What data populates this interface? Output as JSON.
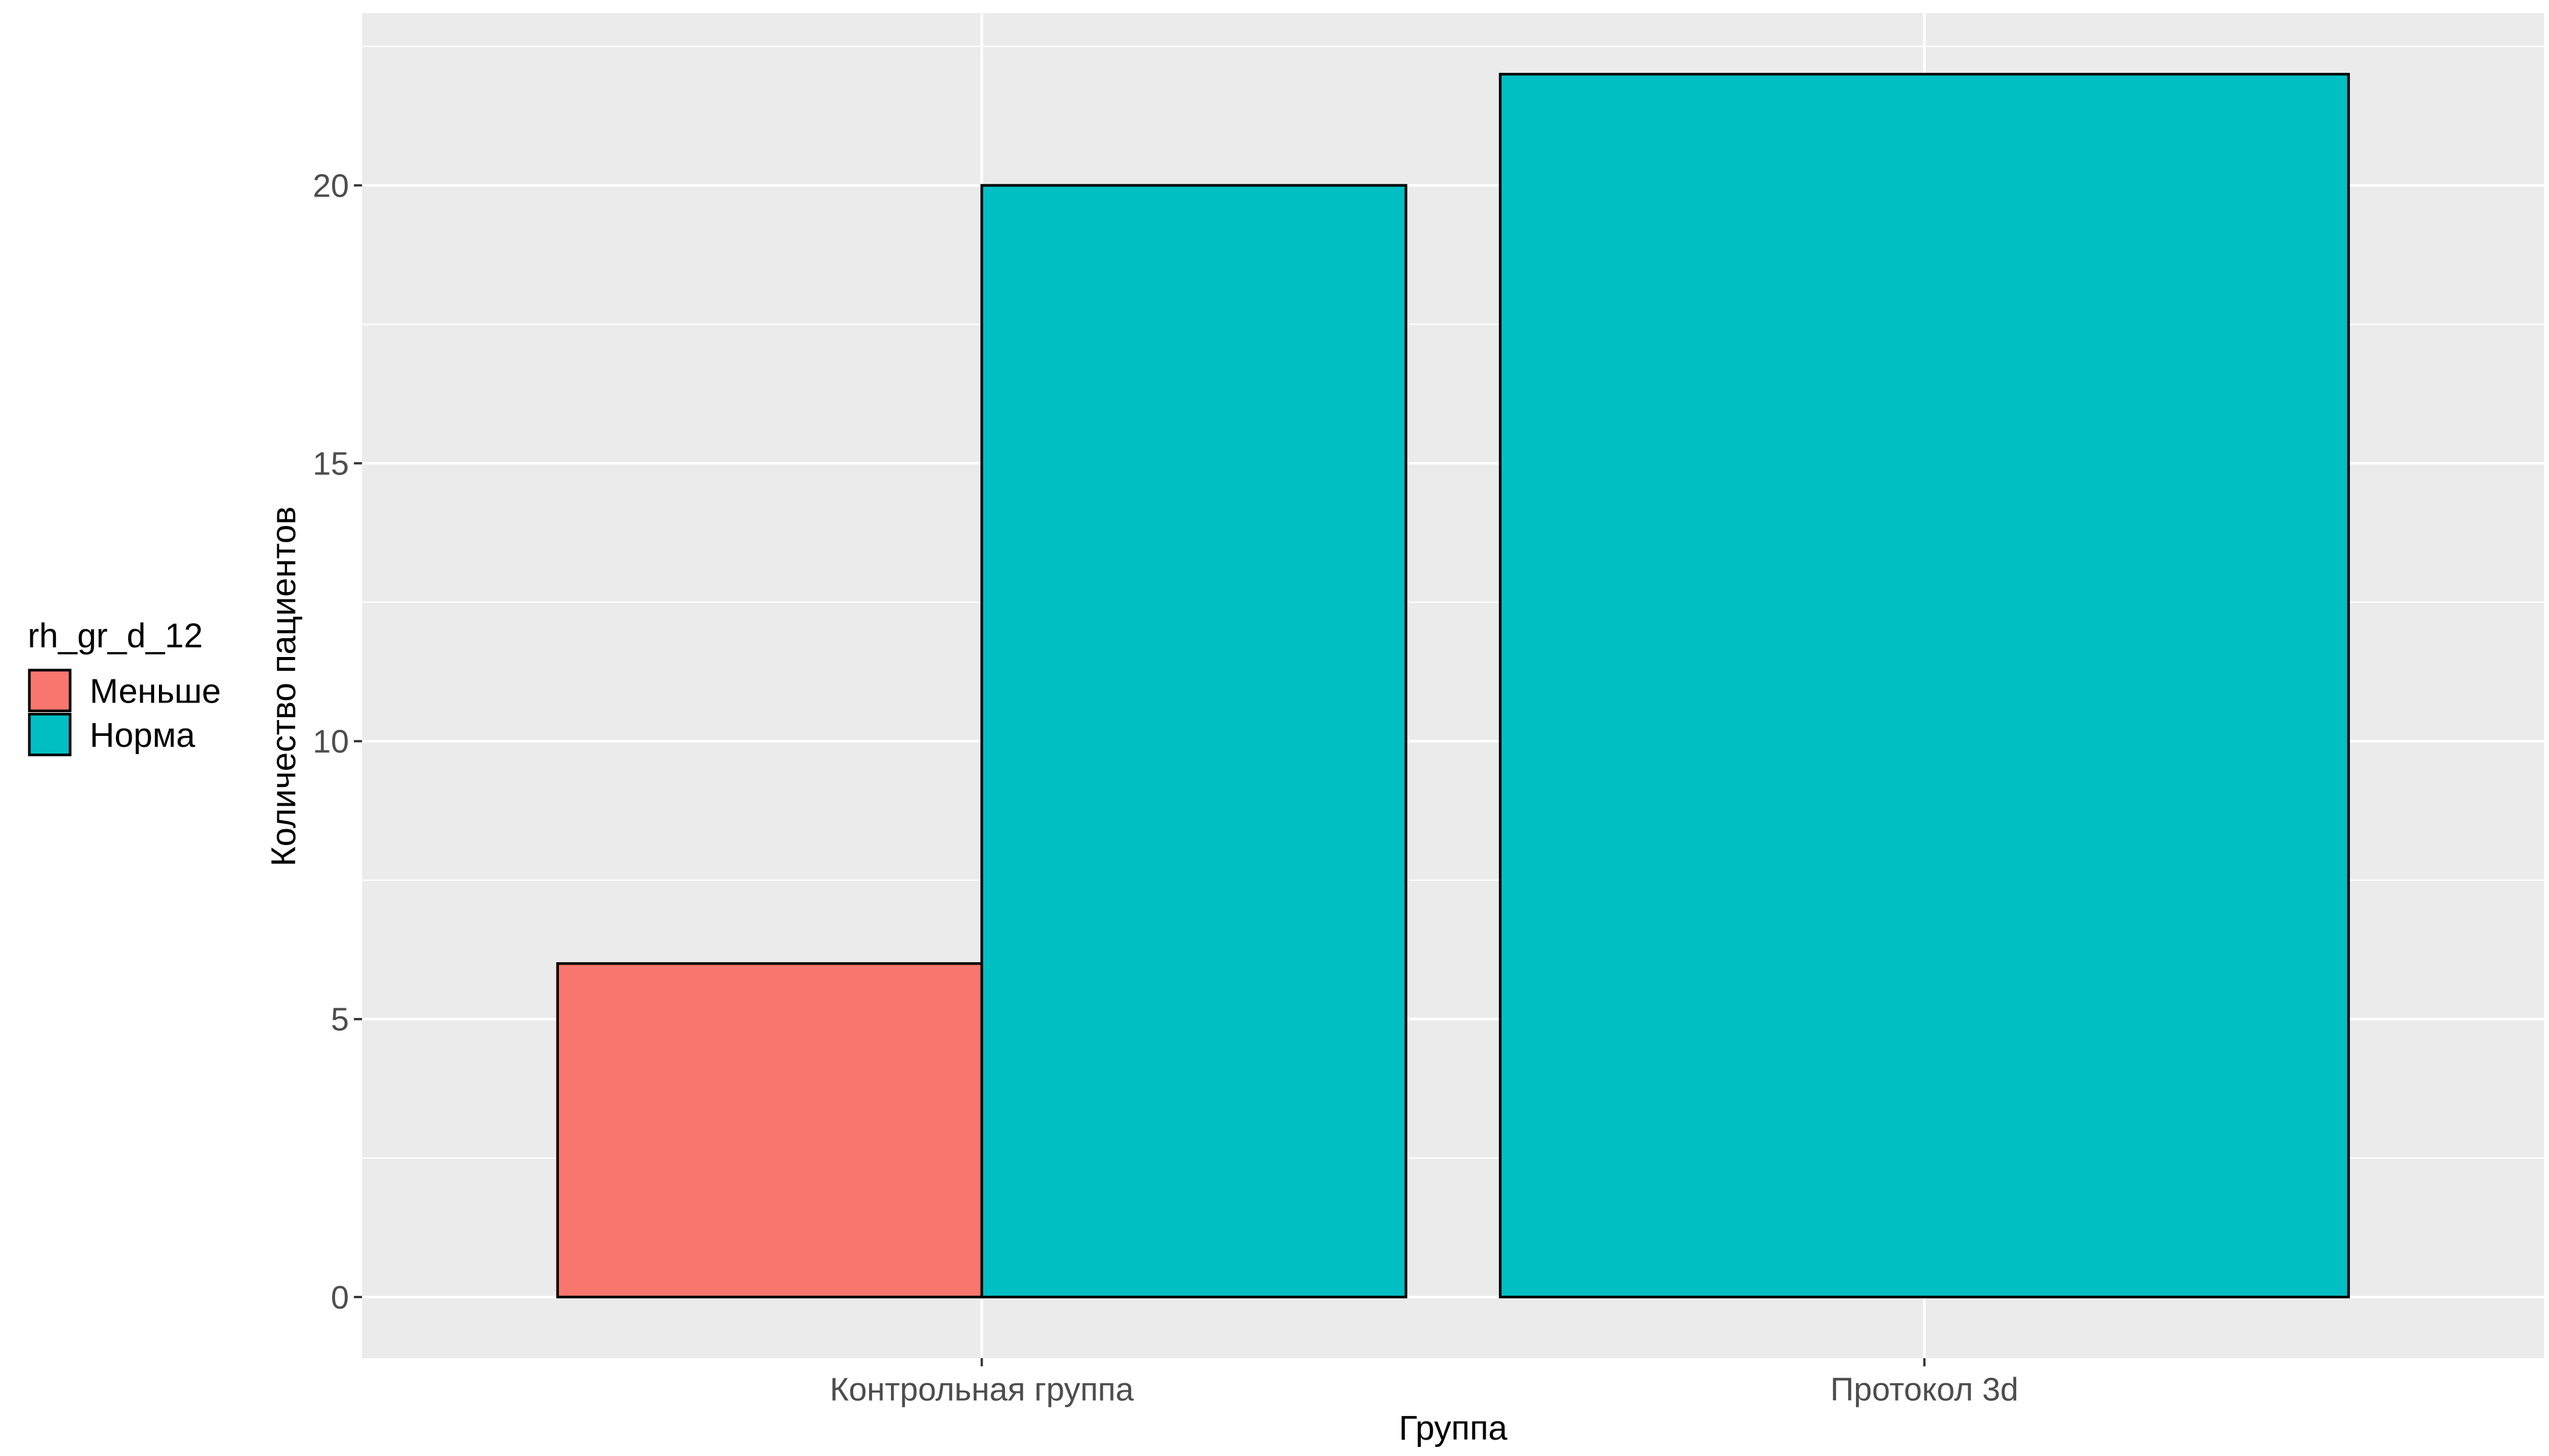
{
  "chart_data": {
    "type": "bar",
    "xlabel": "Группа",
    "ylabel": "Количество пациентов",
    "categories": [
      "Контрольная группа",
      "Протокол 3d"
    ],
    "series": [
      {
        "name": "Меньше",
        "values": [
          6,
          null
        ],
        "color": "#F8766D"
      },
      {
        "name": "Норма",
        "values": [
          20,
          22
        ],
        "color": "#00BFC4"
      }
    ],
    "yticks": [
      0,
      5,
      10,
      15,
      20
    ],
    "ylim": [
      -1.1,
      23.1
    ],
    "grid": true,
    "legend": {
      "title": "rh_gr_d_12",
      "position": "left"
    },
    "colors": {
      "panel_background": "#EBEBEB",
      "gridline": "#FFFFFF",
      "bar_outline": "#000000"
    }
  }
}
